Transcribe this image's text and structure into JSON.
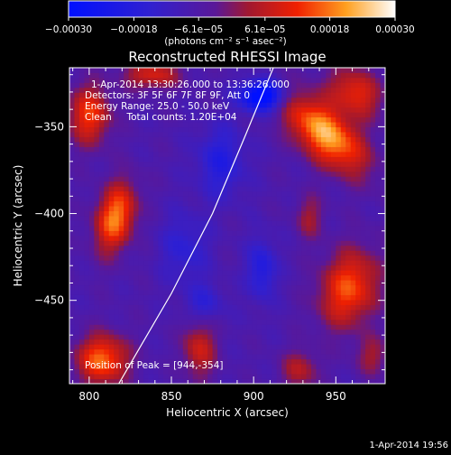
{
  "chart_data": {
    "type": "heatmap",
    "title": "Reconstructed RHESSI Image",
    "xlabel": "Heliocentric X (arcsec)",
    "ylabel": "Heliocentric Y (arcsec)",
    "xlim": [
      788,
      980
    ],
    "ylim": [
      -498,
      -316
    ],
    "x_ticks": [
      800,
      850,
      900,
      950
    ],
    "x_tick_labels": [
      "800",
      "850",
      "900",
      "950"
    ],
    "y_ticks": [
      -450,
      -400,
      -350
    ],
    "y_tick_labels": [
      "−450",
      "−400",
      "−350"
    ],
    "colorbar": {
      "min": -0.0003,
      "max": 0.0003,
      "ticks": [
        -0.0003,
        -0.00018,
        -6.1e-05,
        6.1e-05,
        0.00018,
        0.0003
      ],
      "tick_labels": [
        "−0.00030",
        "−0.00018",
        "−6.1e−05",
        "6.1e−05",
        "0.00018",
        "0.00030"
      ],
      "unit_label": "(photons cm⁻² s⁻¹ asec⁻²)"
    },
    "annotations": {
      "time": "1-Apr-2014 13:30:26.000 to 13:36:26.000",
      "detectors": "Detectors: 3F 5F 6F 7F 8F 9F, Att 0",
      "energy": "Energy Range: 25.0 - 50.0 keV",
      "clean": "Clean     Total counts: 1.20E+04",
      "peak": "Position of Peak = [944,-354]"
    },
    "footer_timestamp": "1-Apr-2014 19:56",
    "limb_curve": [
      [
        818,
        -498
      ],
      [
        850,
        -446
      ],
      [
        875,
        -400
      ],
      [
        895,
        -355
      ],
      [
        912,
        -316
      ]
    ],
    "sources": [
      {
        "x": 944,
        "y": -354,
        "amp": 0.0003,
        "sx": 20,
        "sy": 10,
        "rot": -40
      },
      {
        "x": 962,
        "y": -330,
        "amp": 0.00018,
        "sx": 12,
        "sy": 9,
        "rot": -30
      },
      {
        "x": 800,
        "y": -343,
        "amp": 0.0002,
        "sx": 9,
        "sy": 12,
        "rot": 0
      },
      {
        "x": 838,
        "y": -320,
        "amp": 0.00016,
        "sx": 12,
        "sy": 6,
        "rot": 0
      },
      {
        "x": 816,
        "y": -402,
        "amp": 0.00026,
        "sx": 8,
        "sy": 14,
        "rot": -15
      },
      {
        "x": 808,
        "y": -484,
        "amp": 0.00024,
        "sx": 11,
        "sy": 10,
        "rot": 0
      },
      {
        "x": 867,
        "y": -478,
        "amp": 0.00015,
        "sx": 7,
        "sy": 12,
        "rot": 0
      },
      {
        "x": 958,
        "y": -443,
        "amp": 0.00022,
        "sx": 12,
        "sy": 16,
        "rot": -20
      },
      {
        "x": 928,
        "y": -490,
        "amp": 0.00012,
        "sx": 8,
        "sy": 8,
        "rot": 0
      },
      {
        "x": 972,
        "y": -482,
        "amp": 0.0001,
        "sx": 7,
        "sy": 8,
        "rot": 0
      },
      {
        "x": 934,
        "y": -402,
        "amp": 0.0001,
        "sx": 6,
        "sy": 9,
        "rot": 0
      },
      {
        "x": 905,
        "y": -332,
        "amp": -0.0003,
        "sx": 9,
        "sy": 6,
        "rot": 0
      },
      {
        "x": 880,
        "y": -370,
        "amp": -0.00012,
        "sx": 10,
        "sy": 14,
        "rot": 0
      },
      {
        "x": 905,
        "y": -432,
        "amp": -0.00013,
        "sx": 6,
        "sy": 12,
        "rot": 0
      },
      {
        "x": 858,
        "y": -420,
        "amp": -9e-05,
        "sx": 10,
        "sy": 14,
        "rot": 0
      },
      {
        "x": 870,
        "y": -452,
        "amp": -9e-05,
        "sx": 8,
        "sy": 8,
        "rot": 0
      }
    ],
    "base_level": -7e-05
  }
}
